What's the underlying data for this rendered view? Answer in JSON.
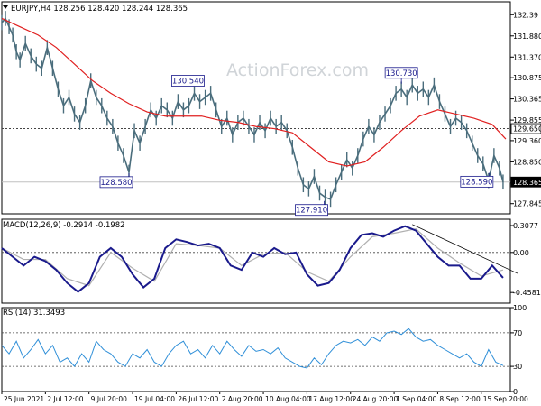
{
  "colors": {
    "price": "#4a6d7c",
    "ma": "#e02020",
    "macd_hist": "#1a1a8c",
    "macd_signal": "#b0b0b0",
    "rsi": "#2f8fd8",
    "label_border": "#1a1a8c",
    "axis": "#000000",
    "grid_dash": "#444444"
  },
  "chart_data": [
    {
      "type": "line",
      "title": "EURJPY,H4  128.256 128.420 128.244 128.365",
      "watermark": "ActionForex.com",
      "ylim": [
        127.6,
        132.7
      ],
      "y_ticks": [
        "132.39",
        "131.880",
        "131.370",
        "130.875",
        "130.365",
        "129.855",
        "129.360",
        "128.850",
        "128.340",
        "127.845"
      ],
      "y_tick_values": [
        132.39,
        131.88,
        131.37,
        130.875,
        130.365,
        129.855,
        129.36,
        128.85,
        128.34,
        127.845
      ],
      "current_price": {
        "value": 128.365,
        "label": "128.365"
      },
      "horizontal_level": {
        "value": 129.65,
        "label": "129.650"
      },
      "price_series": {
        "name": "EURJPY close",
        "x": [
          0,
          4,
          8,
          12,
          16,
          20,
          26,
          32,
          38,
          44,
          50,
          56,
          62,
          68,
          74,
          80,
          86,
          92,
          98,
          104,
          110,
          116,
          122,
          128,
          134,
          140,
          146,
          152,
          158,
          164,
          170,
          176,
          182,
          188,
          194,
          200,
          206,
          212,
          218,
          224,
          230,
          236,
          242,
          248,
          254,
          260,
          266,
          272,
          278,
          284,
          290,
          296,
          302,
          308,
          314,
          320,
          326,
          332,
          338,
          344,
          350,
          356,
          362,
          368,
          374,
          380,
          386,
          392,
          398,
          404,
          410,
          416,
          422,
          428,
          434,
          440,
          446,
          452,
          458,
          464,
          470,
          476,
          482,
          488,
          494,
          500,
          506,
          512,
          518,
          524,
          530,
          536,
          542,
          548,
          552
        ],
        "values": [
          132.2,
          132.3,
          132.1,
          131.9,
          131.5,
          131.3,
          131.7,
          131.4,
          131.2,
          131.1,
          131.6,
          131.1,
          130.6,
          130.2,
          130.4,
          130.0,
          129.8,
          130.2,
          130.8,
          130.4,
          130.2,
          129.9,
          129.7,
          129.3,
          129.0,
          128.6,
          129.6,
          129.3,
          129.7,
          130.1,
          129.9,
          130.2,
          130.1,
          129.9,
          130.3,
          130.1,
          130.2,
          130.5,
          130.3,
          130.4,
          130.5,
          130.1,
          129.7,
          129.9,
          129.5,
          129.8,
          129.9,
          129.7,
          129.5,
          129.8,
          129.6,
          129.9,
          129.7,
          129.8,
          129.6,
          129.2,
          128.7,
          128.3,
          128.2,
          128.5,
          128.1,
          128.0,
          127.95,
          128.3,
          128.6,
          128.9,
          128.7,
          129.0,
          129.4,
          129.7,
          129.5,
          129.8,
          130.0,
          130.2,
          130.5,
          130.6,
          130.4,
          130.7,
          130.5,
          130.6,
          130.4,
          130.7,
          130.3,
          130.0,
          129.7,
          129.9,
          129.8,
          129.6,
          129.3,
          129.0,
          128.8,
          128.4,
          129.0,
          128.7,
          128.365
        ]
      },
      "ma_series": {
        "x": [
          0,
          20,
          40,
          60,
          80,
          100,
          120,
          140,
          160,
          180,
          200,
          220,
          240,
          260,
          280,
          300,
          320,
          340,
          360,
          380,
          400,
          420,
          440,
          460,
          480,
          500,
          520,
          540,
          555
        ],
        "values": [
          132.3,
          132.1,
          131.9,
          131.6,
          131.2,
          130.8,
          130.5,
          130.25,
          130.05,
          129.95,
          129.95,
          129.95,
          129.85,
          129.8,
          129.7,
          129.65,
          129.55,
          129.2,
          128.85,
          128.75,
          128.85,
          129.2,
          129.6,
          129.95,
          130.1,
          130.0,
          129.9,
          129.75,
          129.4
        ]
      },
      "annotations": [
        {
          "label": "130.540",
          "x": 205,
          "value": 130.54,
          "box": "above"
        },
        {
          "label": "128.580",
          "x": 140,
          "value": 128.58,
          "box": "below"
        },
        {
          "label": "127.910",
          "x": 355,
          "value": 127.91,
          "box": "below"
        },
        {
          "label": "130.730",
          "x": 440,
          "value": 130.73,
          "box": "above"
        },
        {
          "label": "128.590",
          "x": 537,
          "value": 128.59,
          "box": "below"
        }
      ]
    },
    {
      "type": "line",
      "title": "MACD(12,26,9) -0.2914 -0.1982",
      "ylim": [
        -0.58,
        0.38
      ],
      "y_ticks": [
        "0.3077",
        "0.00",
        "-0.4581"
      ],
      "y_tick_values": [
        0.3077,
        0.0,
        -0.4581
      ],
      "zero_line": 0.0,
      "series": [
        {
          "values_x": [
            0,
            12,
            24,
            36,
            48,
            60,
            72,
            84,
            96,
            108,
            120,
            132,
            144,
            156,
            168,
            180,
            192,
            204,
            216,
            228,
            240,
            252,
            264,
            276,
            288,
            300,
            312,
            324,
            336,
            348,
            360,
            372,
            384,
            396,
            408,
            420,
            432,
            444,
            456,
            468,
            480,
            492,
            504,
            516,
            528,
            540,
            552
          ],
          "values": [
            0.05,
            -0.05,
            -0.15,
            -0.05,
            -0.1,
            -0.2,
            -0.35,
            -0.45,
            -0.35,
            -0.05,
            0.05,
            -0.05,
            -0.25,
            -0.4,
            -0.3,
            0.05,
            0.15,
            0.12,
            0.08,
            0.1,
            0.05,
            -0.15,
            -0.2,
            0.0,
            -0.05,
            0.05,
            -0.02,
            0.0,
            -0.25,
            -0.38,
            -0.35,
            -0.2,
            0.05,
            0.2,
            0.22,
            0.18,
            0.25,
            0.3,
            0.25,
            0.1,
            -0.05,
            -0.15,
            -0.15,
            -0.3,
            -0.3,
            -0.15,
            -0.29
          ]
        },
        {
          "values_x": [
            0,
            24,
            48,
            72,
            96,
            120,
            144,
            168,
            192,
            216,
            240,
            264,
            288,
            312,
            336,
            360,
            384,
            408,
            432,
            456,
            480,
            504,
            528,
            552
          ],
          "values": [
            0.05,
            -0.08,
            -0.08,
            -0.3,
            -0.38,
            0.0,
            -0.18,
            -0.33,
            0.1,
            0.08,
            0.05,
            -0.15,
            -0.02,
            0.0,
            -0.22,
            -0.33,
            -0.05,
            0.18,
            0.22,
            0.27,
            0.05,
            -0.12,
            -0.27,
            -0.2
          ]
        }
      ],
      "trendline": {
        "from": {
          "x": 452,
          "value": 0.32
        },
        "to": {
          "x": 568,
          "value": -0.24
        }
      }
    },
    {
      "type": "line",
      "title": "RSI(14) 31.3493",
      "ylim": [
        0,
        100
      ],
      "y_ticks": [
        "100",
        "70",
        "30",
        "0"
      ],
      "y_tick_values": [
        100,
        70,
        30,
        0
      ],
      "levels": [
        70,
        30
      ],
      "x": [
        0,
        8,
        16,
        24,
        32,
        40,
        48,
        56,
        64,
        72,
        80,
        88,
        96,
        104,
        112,
        120,
        128,
        136,
        144,
        152,
        160,
        168,
        176,
        184,
        192,
        200,
        208,
        216,
        224,
        232,
        240,
        248,
        256,
        264,
        272,
        280,
        288,
        296,
        304,
        312,
        320,
        328,
        336,
        344,
        352,
        360,
        368,
        376,
        384,
        392,
        400,
        408,
        416,
        424,
        432,
        440,
        448,
        456,
        464,
        472,
        480,
        488,
        496,
        504,
        512,
        520,
        528,
        536,
        544,
        552
      ],
      "values": [
        55,
        45,
        60,
        40,
        50,
        62,
        45,
        55,
        35,
        40,
        30,
        45,
        35,
        60,
        50,
        45,
        35,
        30,
        45,
        40,
        50,
        35,
        30,
        45,
        55,
        60,
        45,
        50,
        40,
        55,
        45,
        60,
        50,
        42,
        55,
        48,
        50,
        45,
        52,
        40,
        35,
        30,
        28,
        40,
        32,
        45,
        55,
        60,
        58,
        62,
        55,
        65,
        60,
        70,
        72,
        68,
        75,
        65,
        60,
        62,
        55,
        50,
        45,
        40,
        45,
        35,
        30,
        50,
        35,
        31
      ]
    }
  ],
  "x_axis": {
    "labels": [
      "25 Jun 2021",
      "2 Jul 12:00",
      "9 Jul 20:00",
      "19 Jul 04:00",
      "26 Jul 12:00",
      "2 Aug 20:00",
      "10 Aug 04:00",
      "17 Aug 12:00",
      "24 Aug 20:00",
      "1 Sep 04:00",
      "8 Sep 12:00",
      "15 Sep 20:00"
    ],
    "positions": [
      0,
      48,
      96,
      144,
      192,
      240,
      288,
      336,
      384,
      432,
      480,
      528
    ]
  }
}
